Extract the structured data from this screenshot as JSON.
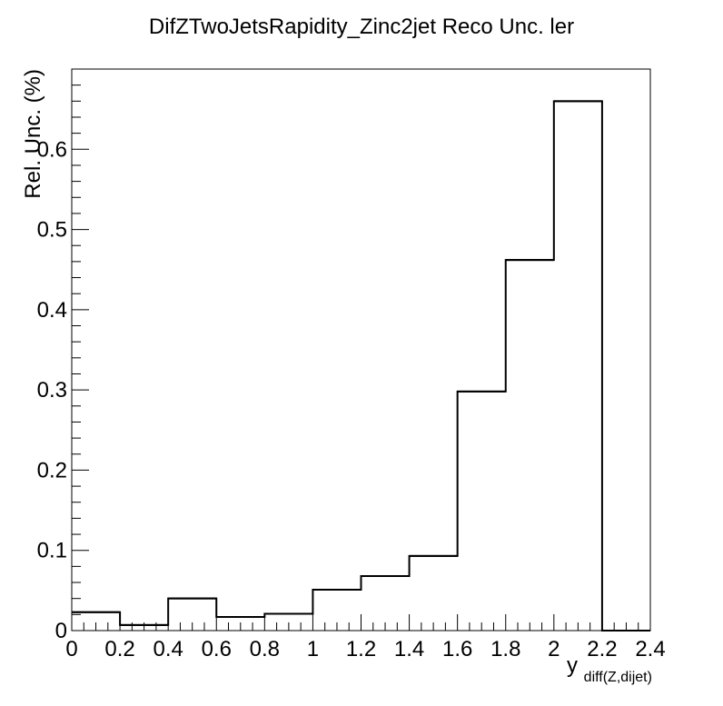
{
  "chart_data": {
    "type": "bar",
    "title": "DifZTwoJetsRapidity_Zinc2jet Reco Unc. ler",
    "ylabel": "Rel. Unc. (%)",
    "xlabel_main": "y",
    "xlabel_sub": "diff(Z,dijet)",
    "xlim": [
      0,
      2.4
    ],
    "ylim": [
      0,
      0.7
    ],
    "x_ticks": [
      0,
      0.2,
      0.4,
      0.6,
      0.8,
      1,
      1.2,
      1.4,
      1.6,
      1.8,
      2,
      2.2,
      2.4
    ],
    "x_tick_labels": [
      "0",
      "0.2",
      "0.4",
      "0.6",
      "0.8",
      "1",
      "1.2",
      "1.4",
      "1.6",
      "1.8",
      "2",
      "2.2",
      "2.4"
    ],
    "y_ticks": [
      0,
      0.1,
      0.2,
      0.3,
      0.4,
      0.5,
      0.6
    ],
    "y_tick_labels": [
      "0",
      "0.1",
      "0.2",
      "0.3",
      "0.4",
      "0.5",
      "0.6"
    ],
    "bin_edges": [
      0,
      0.2,
      0.4,
      0.6,
      0.8,
      1.0,
      1.2,
      1.4,
      1.6,
      1.8,
      2.0,
      2.2,
      2.4
    ],
    "values": [
      0.023,
      0.007,
      0.04,
      0.017,
      0.021,
      0.051,
      0.068,
      0.093,
      0.298,
      0.462,
      0.66,
      0.0,
      0.0
    ],
    "grid": false,
    "legend": "none",
    "line_color": "#000000"
  }
}
